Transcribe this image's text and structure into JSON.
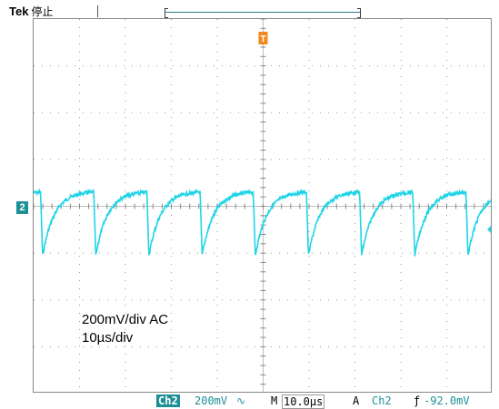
{
  "header": {
    "brand": "Tek",
    "state": "停止"
  },
  "trigger_marker": "T",
  "channel_marker": "2",
  "annotation": {
    "line1": "200mV/div AC",
    "line2": "10µs/div"
  },
  "status": {
    "channel": "Ch2",
    "volts_div": "200mV",
    "coupling_symbol": "∿",
    "timebase_prefix": "M",
    "timebase": "10.0µs",
    "trigger_mode": "A",
    "trigger_source": "Ch2",
    "trigger_slope": "ƒ",
    "trigger_level": "-92.0mV"
  },
  "colors": {
    "trace": "#1fd4e6",
    "trigger": "#f08a1e",
    "channel": "#1d8f97"
  }
}
